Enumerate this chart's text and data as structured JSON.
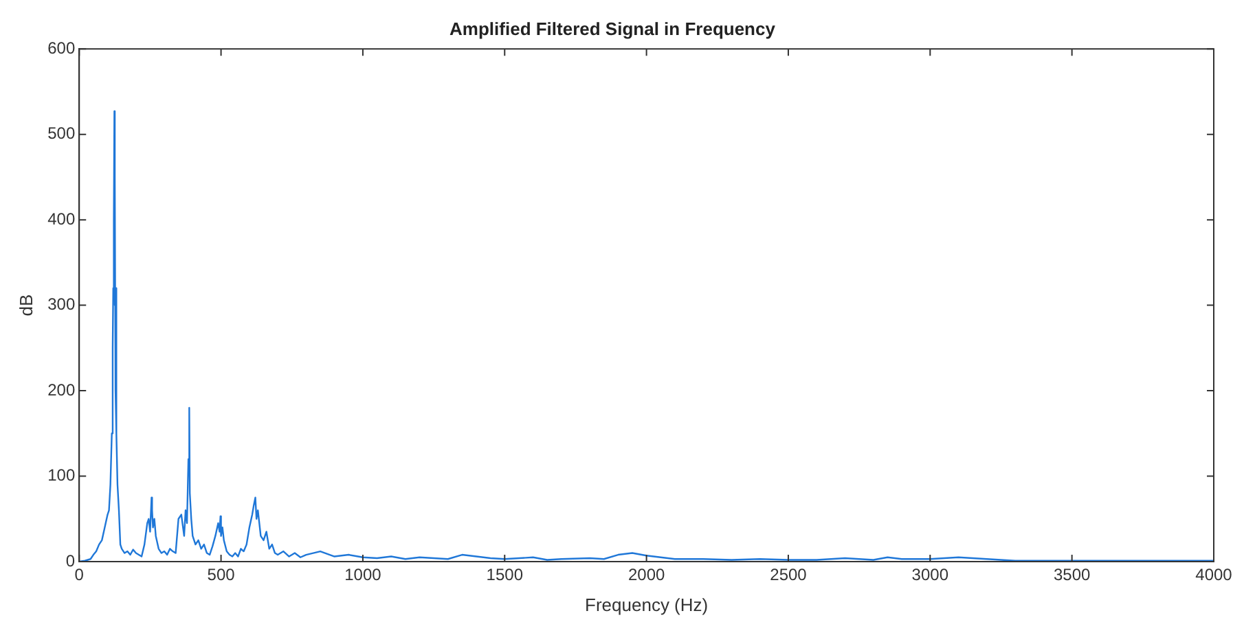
{
  "chart_data": {
    "type": "line",
    "title": "Amplified Filtered Signal in Frequency",
    "xlabel": "Frequency (Hz)",
    "ylabel": "dB",
    "grid": false,
    "legend": false,
    "marker": "none",
    "line_style": "solid",
    "xlim": [
      0,
      4000
    ],
    "ylim": [
      0,
      600
    ],
    "xticks": [
      0,
      500,
      1000,
      1500,
      2000,
      2500,
      3000,
      3500,
      4000
    ],
    "yticks": [
      0,
      100,
      200,
      300,
      400,
      500,
      600
    ],
    "series": [
      {
        "color": "#1f77d8",
        "x": [
          0,
          20,
          40,
          50,
          60,
          70,
          80,
          90,
          100,
          105,
          110,
          115,
          118,
          120,
          122,
          124,
          125,
          126,
          128,
          130,
          132,
          135,
          140,
          145,
          150,
          160,
          170,
          180,
          190,
          200,
          210,
          220,
          230,
          240,
          245,
          250,
          255,
          257,
          260,
          265,
          270,
          280,
          290,
          300,
          310,
          320,
          330,
          340,
          350,
          360,
          370,
          375,
          380,
          385,
          388,
          390,
          395,
          400,
          410,
          420,
          430,
          440,
          450,
          460,
          470,
          480,
          490,
          495,
          498,
          500,
          505,
          510,
          520,
          530,
          540,
          550,
          560,
          570,
          580,
          590,
          600,
          610,
          615,
          621,
          625,
          630,
          640,
          650,
          660,
          670,
          680,
          690,
          700,
          720,
          740,
          760,
          780,
          800,
          850,
          900,
          950,
          1000,
          1050,
          1100,
          1150,
          1200,
          1300,
          1350,
          1400,
          1450,
          1500,
          1600,
          1650,
          1700,
          1800,
          1850,
          1900,
          1950,
          2000,
          2050,
          2100,
          2200,
          2300,
          2400,
          2500,
          2600,
          2650,
          2700,
          2800,
          2850,
          2900,
          3000,
          3100,
          3200,
          3250,
          3300,
          3400,
          3500,
          3600,
          3700,
          3800,
          3900,
          4000
        ],
        "values": [
          0,
          1,
          3,
          8,
          12,
          20,
          25,
          40,
          55,
          60,
          90,
          150,
          250,
          320,
          400,
          527,
          300,
          450,
          200,
          320,
          150,
          90,
          60,
          20,
          15,
          10,
          12,
          8,
          14,
          10,
          8,
          6,
          20,
          45,
          50,
          35,
          75,
          60,
          40,
          50,
          30,
          15,
          10,
          12,
          8,
          15,
          12,
          10,
          50,
          55,
          30,
          60,
          45,
          120,
          180,
          80,
          50,
          30,
          20,
          25,
          15,
          20,
          10,
          8,
          18,
          30,
          45,
          35,
          53,
          30,
          40,
          25,
          12,
          8,
          6,
          10,
          6,
          15,
          12,
          20,
          40,
          55,
          65,
          75,
          50,
          60,
          30,
          25,
          35,
          15,
          20,
          10,
          8,
          12,
          6,
          10,
          5,
          8,
          12,
          6,
          8,
          5,
          4,
          6,
          3,
          5,
          3,
          8,
          6,
          4,
          3,
          5,
          2,
          3,
          4,
          3,
          8,
          10,
          7,
          5,
          3,
          3,
          2,
          3,
          2,
          2,
          3,
          4,
          2,
          5,
          3,
          3,
          5,
          3,
          2,
          1,
          1,
          1,
          1,
          1,
          1,
          1,
          1
        ]
      }
    ]
  }
}
